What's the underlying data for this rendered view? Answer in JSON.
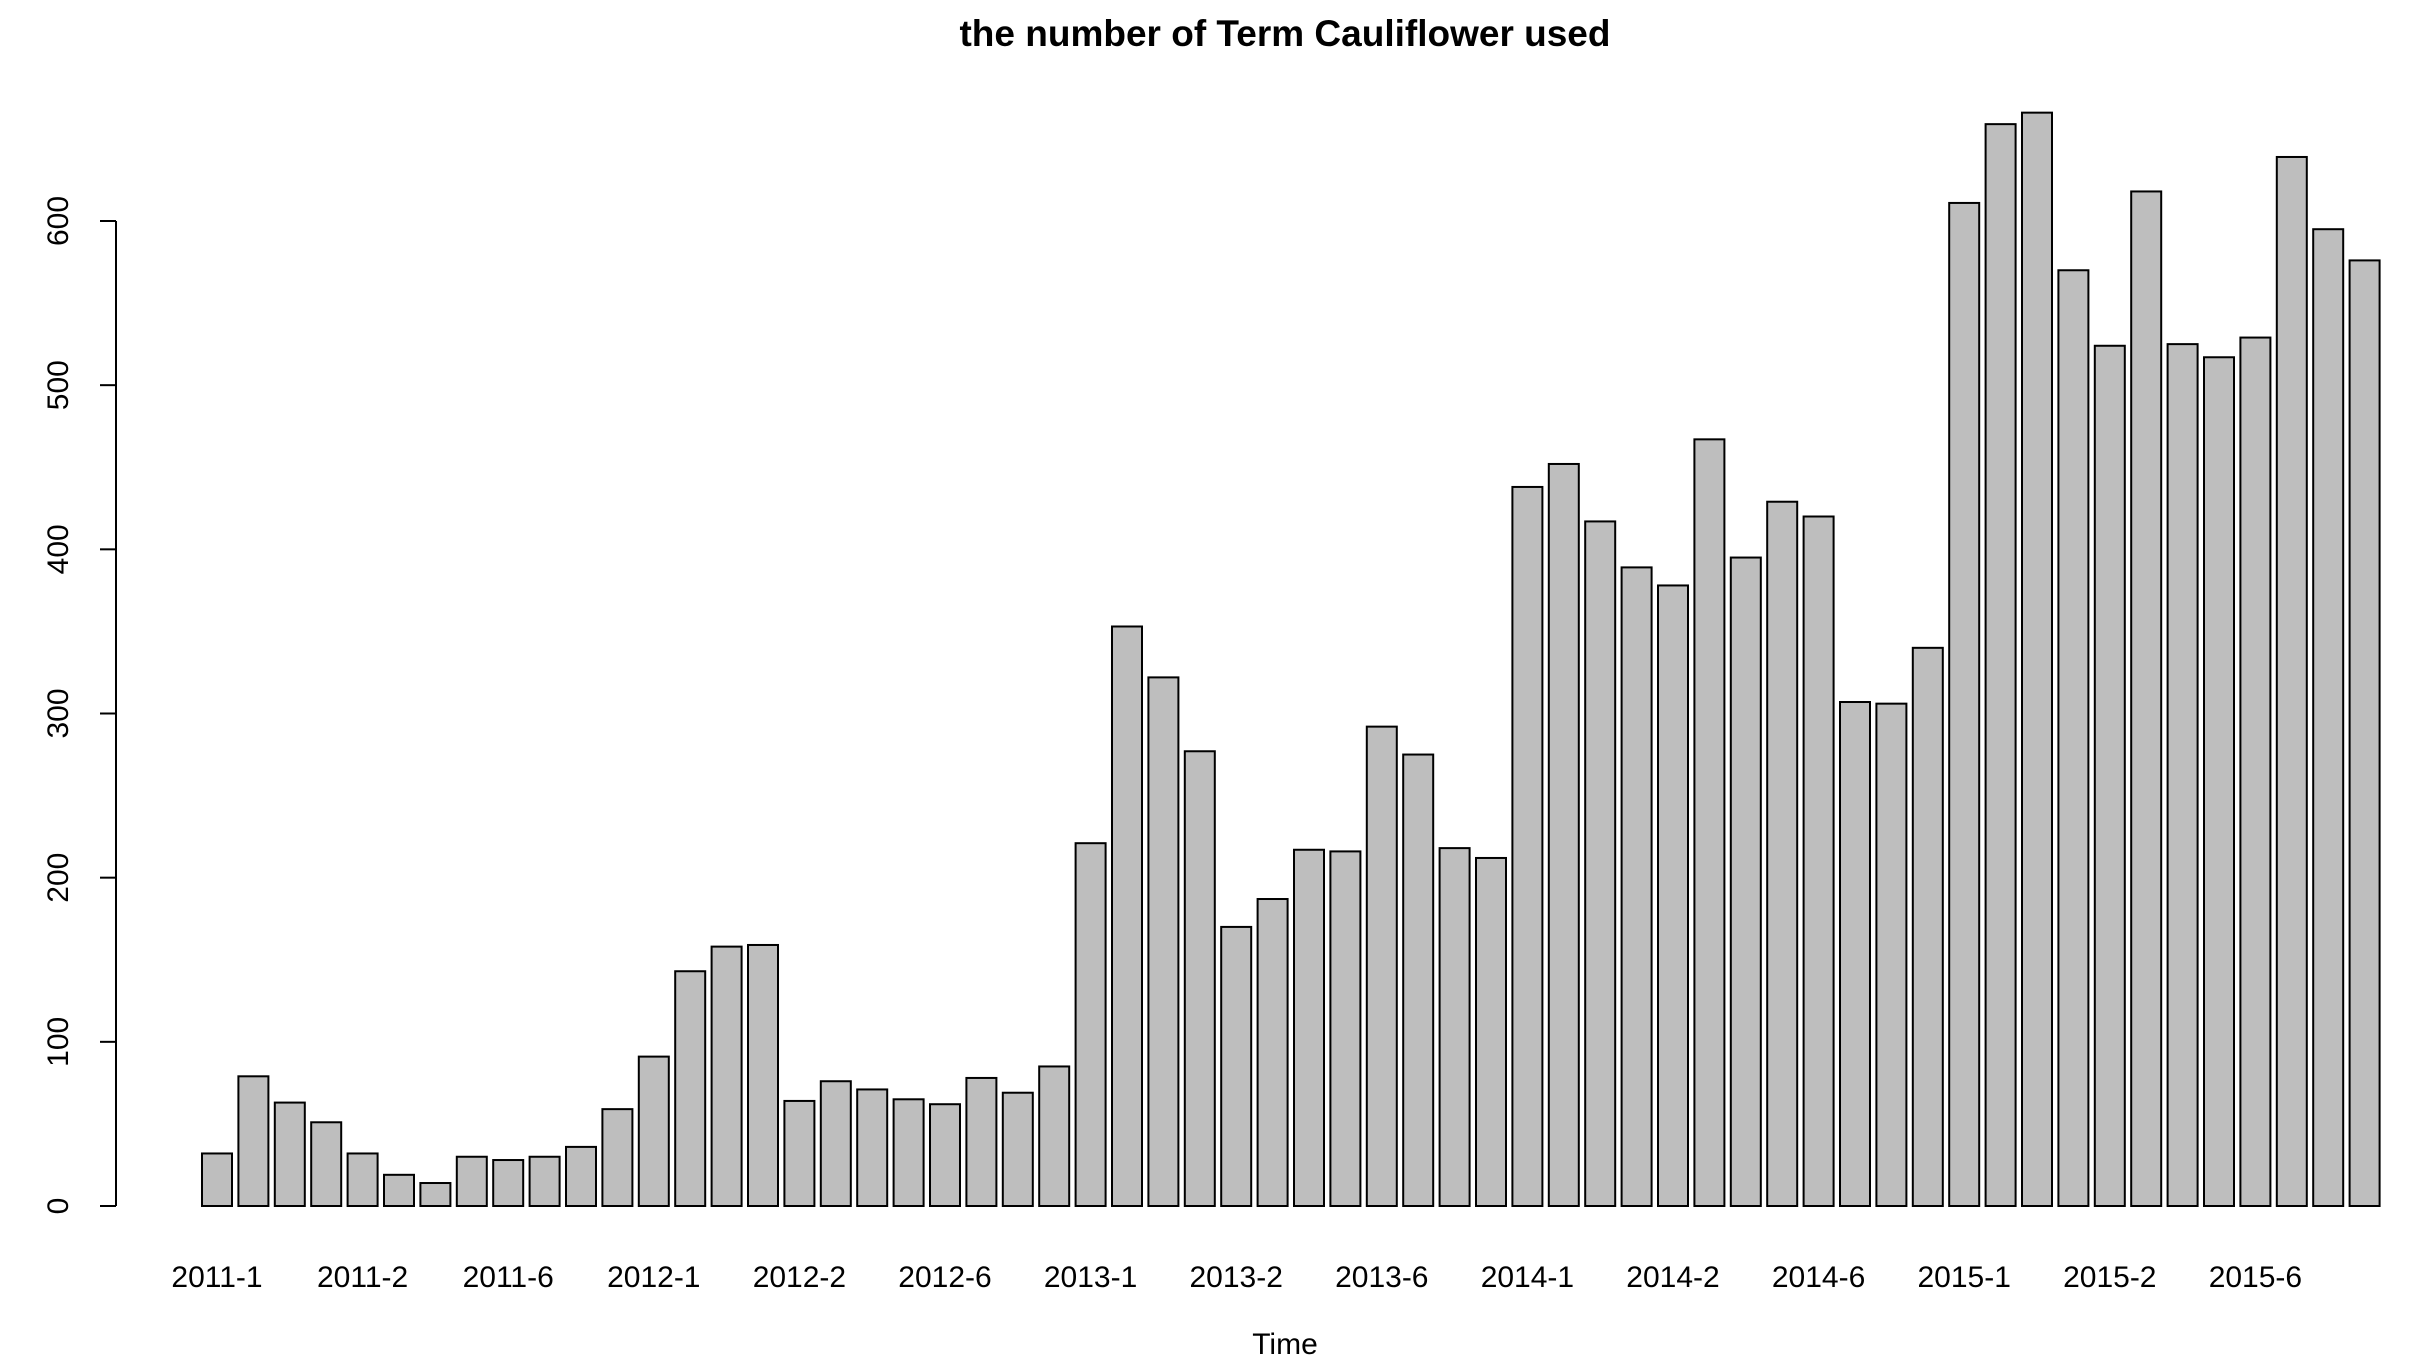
{
  "chart_data": {
    "type": "bar",
    "title": "the number of Term Cauliflower used",
    "xlabel": "Time",
    "ylabel": "",
    "ylim": [
      0,
      680
    ],
    "y_ticks": [
      0,
      100,
      200,
      300,
      400,
      500,
      600
    ],
    "x_tick_labels": [
      "2011-1",
      "2011-2",
      "2011-6",
      "2012-1",
      "2012-2",
      "2012-6",
      "2013-1",
      "2013-2",
      "2013-6",
      "2014-1",
      "2014-2",
      "2014-6",
      "2015-1",
      "2015-2",
      "2015-6"
    ],
    "x_tick_every": 4,
    "grid": false,
    "bar_fill": "#bebebe",
    "bar_stroke": "#000000",
    "values": [
      32,
      79,
      63,
      51,
      32,
      19,
      14,
      30,
      28,
      30,
      36,
      59,
      91,
      143,
      158,
      159,
      64,
      76,
      71,
      65,
      62,
      78,
      69,
      85,
      221,
      353,
      322,
      277,
      170,
      187,
      217,
      216,
      292,
      275,
      218,
      212,
      438,
      452,
      417,
      389,
      378,
      467,
      395,
      429,
      420,
      307,
      306,
      340,
      611,
      659,
      666,
      570,
      524,
      618,
      525,
      517,
      529,
      639,
      595,
      576
    ]
  }
}
